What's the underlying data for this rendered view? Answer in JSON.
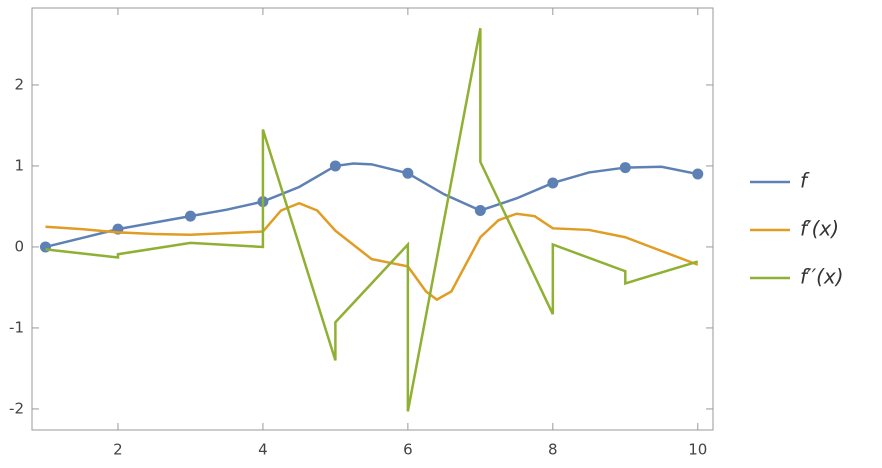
{
  "chart_data": {
    "type": "line",
    "xlim": [
      0.814,
      10.21
    ],
    "ylim": [
      -2.26,
      2.95
    ],
    "xticks": [
      2,
      4,
      6,
      8,
      10
    ],
    "yticks": [
      -2,
      -1,
      0,
      1,
      2
    ],
    "legend": "right",
    "series": [
      {
        "name": "f",
        "color": "#5e81b5",
        "x": [
          1,
          1.5,
          2,
          2.5,
          3,
          3.5,
          4,
          4.5,
          5,
          5.25,
          5.5,
          6,
          6.5,
          7,
          7.5,
          8,
          8.5,
          9,
          9.5,
          10
        ],
        "values": [
          0,
          0.11,
          0.22,
          0.3,
          0.38,
          0.46,
          0.56,
          0.74,
          1.0,
          1.03,
          1.02,
          0.91,
          0.65,
          0.45,
          0.6,
          0.79,
          0.92,
          0.98,
          0.99,
          0.9
        ],
        "points": {
          "x": [
            1,
            2,
            3,
            4,
            5,
            6,
            7,
            8,
            9,
            10
          ],
          "values": [
            0,
            0.22,
            0.38,
            0.56,
            1.0,
            0.91,
            0.45,
            0.79,
            0.98,
            0.9
          ]
        }
      },
      {
        "name": "f′(x)",
        "color": "#e19c24",
        "x": [
          1,
          1.5,
          2,
          2.5,
          3,
          3.5,
          4,
          4.25,
          4.5,
          4.75,
          5,
          5.5,
          6,
          6.25,
          6.4,
          6.6,
          7,
          7.25,
          7.5,
          7.75,
          8,
          8.5,
          9,
          9.5,
          10
        ],
        "values": [
          0.25,
          0.22,
          0.18,
          0.16,
          0.15,
          0.17,
          0.19,
          0.45,
          0.54,
          0.45,
          0.2,
          -0.15,
          -0.24,
          -0.55,
          -0.65,
          -0.55,
          0.12,
          0.33,
          0.41,
          0.38,
          0.23,
          0.21,
          0.12,
          -0.05,
          -0.22
        ]
      },
      {
        "name": "f′′(x)",
        "color": "#8fb032",
        "x": [
          1,
          2,
          2,
          3,
          4,
          4,
          5,
          5,
          6,
          6,
          7,
          7,
          8,
          8,
          9,
          9,
          10
        ],
        "values": [
          -0.03,
          -0.13,
          -0.09,
          0.05,
          0.0,
          1.45,
          -1.4,
          -0.93,
          0.03,
          -2.03,
          2.7,
          1.05,
          -0.83,
          0.03,
          -0.3,
          -0.45,
          -0.18
        ]
      }
    ]
  }
}
